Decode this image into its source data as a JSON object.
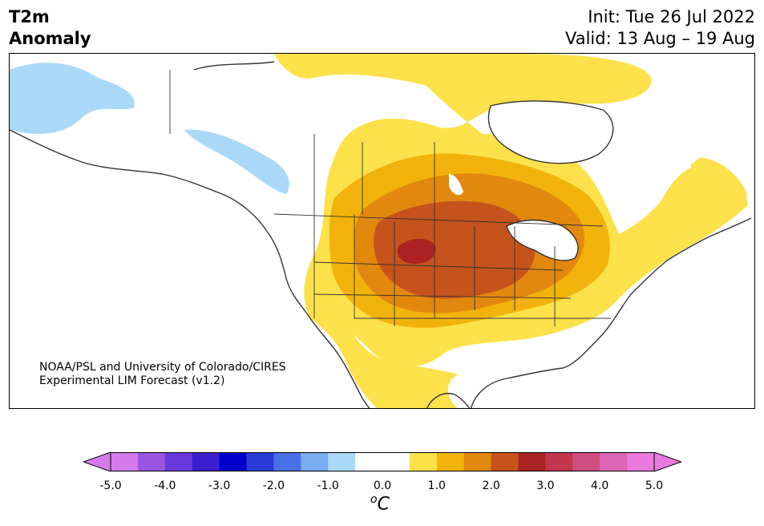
{
  "title": {
    "line1": "T2m",
    "line2": "Anomaly"
  },
  "dates": {
    "init": "Init: Tue 26 Jul 2022",
    "valid": "Valid: 13 Aug – 19 Aug"
  },
  "credit": {
    "line1": "NOAA/PSL and University of Colorado/CIRES",
    "line2": "Experimental LIM Forecast (v1.2)"
  },
  "colorbar": {
    "ticks": [
      "-5.0",
      "-4.0",
      "-3.0",
      "-2.0",
      "-1.0",
      "0.0",
      "1.0",
      "2.0",
      "3.0",
      "4.0",
      "5.0"
    ],
    "colors": [
      "#d57aed",
      "#9a55e0",
      "#6a39dc",
      "#3a1fcf",
      "#0000cc",
      "#2a3bd8",
      "#4a70e5",
      "#78aef0",
      "#aad9f8",
      "#ffffff",
      "#ffffff",
      "#fde14a",
      "#f1b30b",
      "#e2880f",
      "#c6531c",
      "#aa2222",
      "#c23650",
      "#cf4f80",
      "#dd66b8",
      "#e97ade"
    ],
    "under_color": "#d57aed",
    "over_color": "#e97ade",
    "unit_symbol": "o",
    "unit_letter": "C"
  },
  "map": {
    "region": "North America",
    "features": [
      "T2m anomaly shading",
      "coastlines",
      "state borders",
      "province borders"
    ]
  }
}
